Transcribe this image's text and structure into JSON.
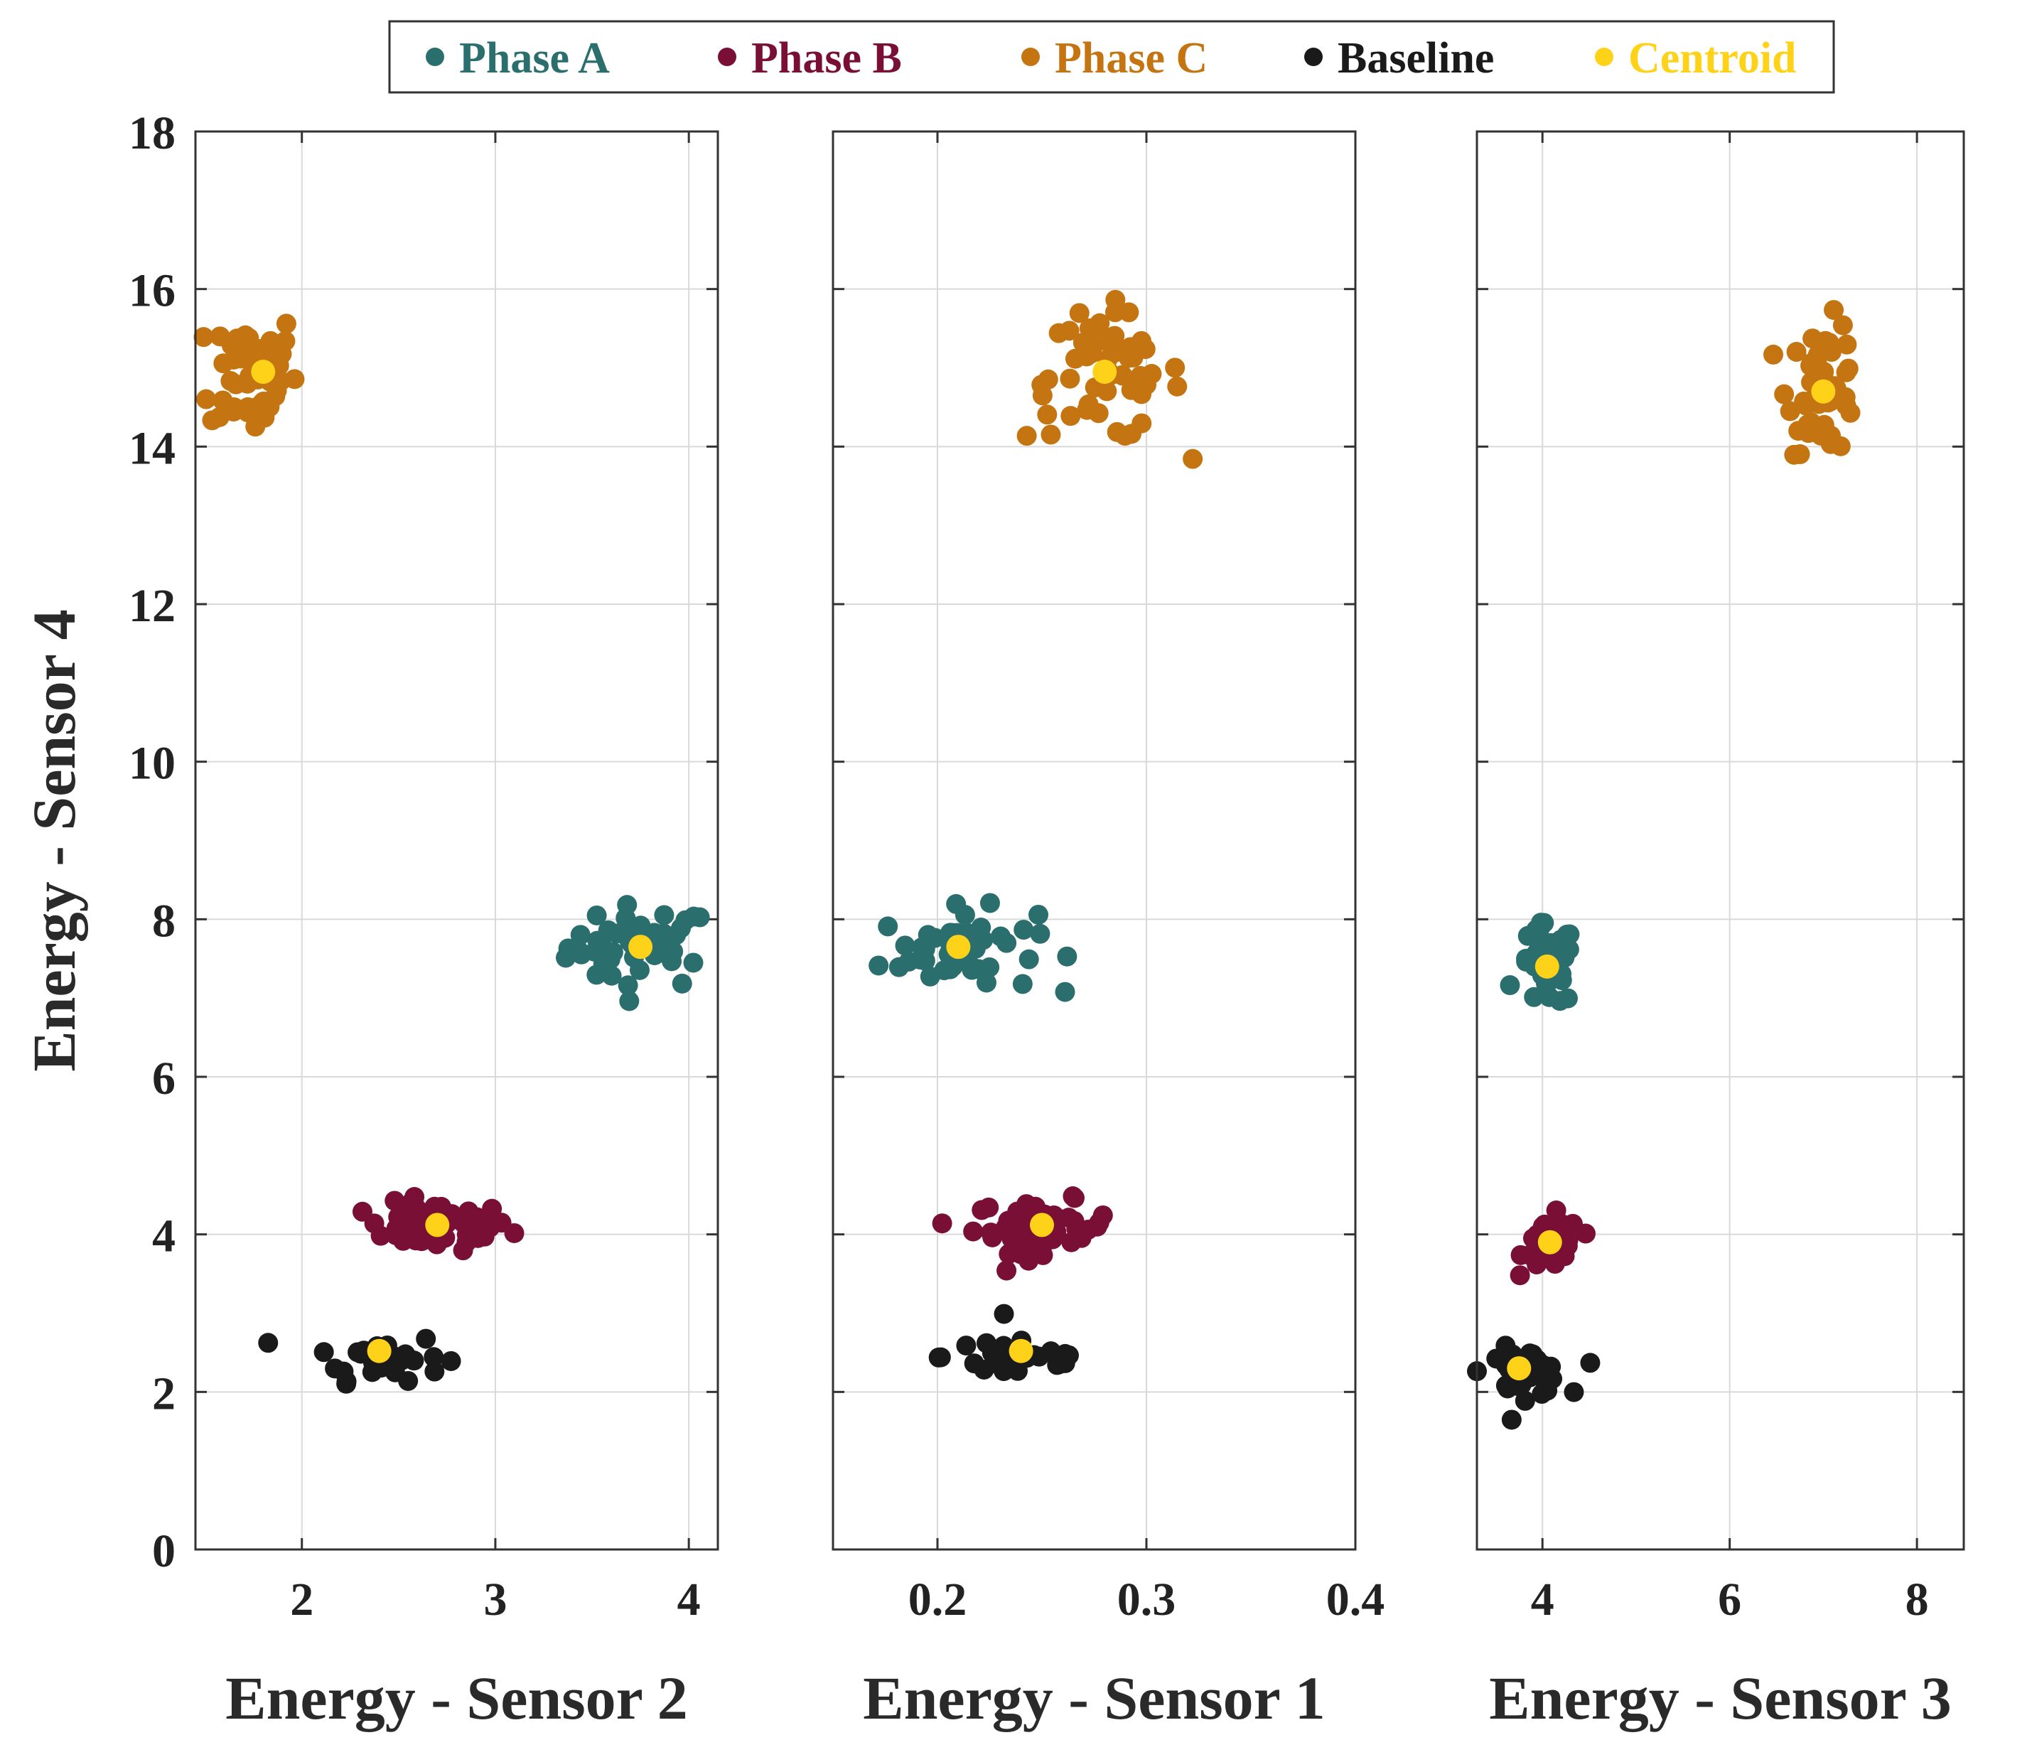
{
  "chart_data": {
    "type": "scatter",
    "legend": {
      "placement": "top-center",
      "entries": [
        {
          "name": "Phase A",
          "color": "#2a6e6e"
        },
        {
          "name": "Phase B",
          "color": "#7a0f35"
        },
        {
          "name": "Phase C",
          "color": "#c47410"
        },
        {
          "name": "Baseline",
          "color": "#1a1a1a"
        },
        {
          "name": "Centroid",
          "color": "#ffd21a"
        }
      ]
    },
    "ylabel": "Energy - Sensor 4",
    "ylim": [
      0,
      18
    ],
    "yticks": [
      0,
      2,
      4,
      6,
      8,
      10,
      12,
      14,
      16,
      18
    ],
    "ytick_labels": [
      "0",
      "2",
      "4",
      "6",
      "8",
      "10",
      "12",
      "14",
      "16",
      "18"
    ],
    "grid": true,
    "panels": [
      {
        "xlabel": "Energy - Sensor 2",
        "xlim": [
          1.45,
          4.15
        ],
        "xticks": [
          2,
          3,
          4
        ],
        "xtick_labels": [
          "2",
          "3",
          "4"
        ],
        "show_y_tick_labels": true,
        "clusters": [
          {
            "name": "Phase A",
            "center": [
              3.75,
              7.65
            ],
            "spread": [
              0.25,
              0.35
            ],
            "n": 45
          },
          {
            "name": "Phase B",
            "center": [
              2.7,
              4.1
            ],
            "spread": [
              0.25,
              0.2
            ],
            "n": 60
          },
          {
            "name": "Phase C",
            "center": [
              1.75,
              14.95
            ],
            "spread": [
              0.15,
              0.55
            ],
            "n": 55
          },
          {
            "name": "Baseline",
            "center": [
              2.4,
              2.45
            ],
            "spread": [
              0.22,
              0.2
            ],
            "n": 30
          }
        ],
        "centroids": [
          [
            3.75,
            7.65
          ],
          [
            2.7,
            4.12
          ],
          [
            1.8,
            14.95
          ],
          [
            2.4,
            2.52
          ]
        ]
      },
      {
        "xlabel": "Energy - Sensor 1",
        "xlim": [
          0.15,
          0.4
        ],
        "xticks": [
          0.2,
          0.3,
          0.4
        ],
        "xtick_labels": [
          "0.2",
          "0.3",
          "0.4"
        ],
        "show_y_tick_labels": false,
        "clusters": [
          {
            "name": "Phase A",
            "center": [
              0.21,
              7.6
            ],
            "spread": [
              0.025,
              0.35
            ],
            "n": 50
          },
          {
            "name": "Phase B",
            "center": [
              0.25,
              4.1
            ],
            "spread": [
              0.022,
              0.22
            ],
            "n": 50
          },
          {
            "name": "Phase C",
            "center": [
              0.28,
              14.9
            ],
            "spread": [
              0.025,
              0.55
            ],
            "n": 55
          },
          {
            "name": "Baseline",
            "center": [
              0.24,
              2.45
            ],
            "spread": [
              0.025,
              0.22
            ],
            "n": 30
          }
        ],
        "centroids": [
          [
            0.21,
            7.65
          ],
          [
            0.25,
            4.12
          ],
          [
            0.28,
            14.95
          ],
          [
            0.24,
            2.52
          ]
        ]
      },
      {
        "xlabel": "Energy - Sensor 3",
        "xlim": [
          3.3,
          8.5
        ],
        "xticks": [
          4,
          6,
          8
        ],
        "xtick_labels": [
          "4",
          "6",
          "8"
        ],
        "show_y_tick_labels": false,
        "clusters": [
          {
            "name": "Phase A",
            "center": [
              4.05,
              7.4
            ],
            "spread": [
              0.2,
              0.35
            ],
            "n": 45
          },
          {
            "name": "Phase B",
            "center": [
              4.1,
              3.9
            ],
            "spread": [
              0.2,
              0.22
            ],
            "n": 45
          },
          {
            "name": "Phase C",
            "center": [
              7.0,
              14.75
            ],
            "spread": [
              0.25,
              0.55
            ],
            "n": 50
          },
          {
            "name": "Baseline",
            "center": [
              3.8,
              2.25
            ],
            "spread": [
              0.3,
              0.2
            ],
            "n": 35
          }
        ],
        "centroids": [
          [
            4.05,
            7.4
          ],
          [
            4.08,
            3.9
          ],
          [
            7.0,
            14.7
          ],
          [
            3.75,
            2.3
          ]
        ]
      }
    ]
  }
}
